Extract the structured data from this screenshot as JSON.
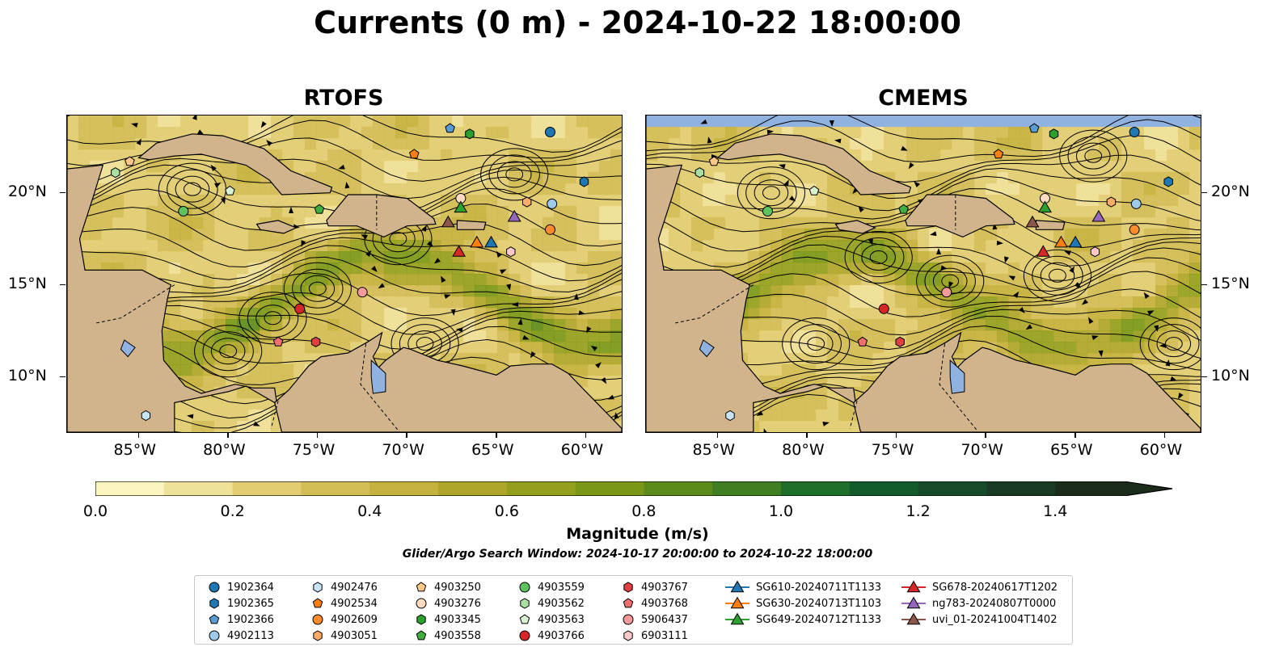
{
  "figure": {
    "title": "Currents (0 m) - 2024-10-22 18:00:00",
    "panels": [
      {
        "id": "rtofs",
        "title": "RTOFS"
      },
      {
        "id": "cmems",
        "title": "CMEMS"
      }
    ],
    "lon_ticks": [
      "85°W",
      "80°W",
      "75°W",
      "70°W",
      "65°W",
      "60°W"
    ],
    "lat_ticks": [
      "20°N",
      "15°N",
      "10°N"
    ],
    "extent": {
      "lon": [
        -89,
        -58
      ],
      "lat": [
        7,
        24.2
      ]
    }
  },
  "colorbar": {
    "label": "Magnitude (m/s)",
    "ticks": [
      "0.0",
      "0.2",
      "0.4",
      "0.6",
      "0.8",
      "1.0",
      "1.2",
      "1.4"
    ],
    "range": [
      0,
      1.5
    ],
    "extend": "max",
    "colors": [
      "#fdf5c0",
      "#f0e199",
      "#e2cd72",
      "#d3bd55",
      "#c5b13d",
      "#aea62a",
      "#94a01d",
      "#7a9718",
      "#5c8b1b",
      "#3f7f22",
      "#1f6e2b",
      "#125c2b",
      "#154b28",
      "#193b23",
      "#1b2c1b"
    ]
  },
  "search_window": "Glider/Argo Search Window: 2024-10-17 20:00:00 to 2024-10-22 18:00:00",
  "legend": [
    {
      "label": "1902364",
      "marker": "circle",
      "color": "#1f77b4"
    },
    {
      "label": "1902365",
      "marker": "hexagon",
      "color": "#1f77b4"
    },
    {
      "label": "1902366",
      "marker": "pentagon",
      "color": "#5a9bd4"
    },
    {
      "label": "4902113",
      "marker": "circle",
      "color": "#9ecae9"
    },
    {
      "label": "4902476",
      "marker": "hexagon",
      "color": "#c6e4f5"
    },
    {
      "label": "4902534",
      "marker": "pentagon",
      "color": "#ff7f0e"
    },
    {
      "label": "4902609",
      "marker": "circle",
      "color": "#ff8c2a"
    },
    {
      "label": "4903051",
      "marker": "hexagon",
      "color": "#ffaa66"
    },
    {
      "label": "4903250",
      "marker": "pentagon",
      "color": "#ffc88a"
    },
    {
      "label": "4903276",
      "marker": "circle",
      "color": "#ffdcc0"
    },
    {
      "label": "4903345",
      "marker": "hexagon",
      "color": "#2ca02c"
    },
    {
      "label": "4903558",
      "marker": "pentagon",
      "color": "#3fb03f"
    },
    {
      "label": "4903559",
      "marker": "circle",
      "color": "#5ec25e"
    },
    {
      "label": "4903562",
      "marker": "hexagon",
      "color": "#a8e0a0"
    },
    {
      "label": "4903563",
      "marker": "pentagon",
      "color": "#d8f2d0"
    },
    {
      "label": "4903766",
      "marker": "circle",
      "color": "#d62728"
    },
    {
      "label": "4903767",
      "marker": "hexagon",
      "color": "#e04040"
    },
    {
      "label": "4903768",
      "marker": "pentagon",
      "color": "#f07070"
    },
    {
      "label": "5906437",
      "marker": "circle",
      "color": "#f59a9a"
    },
    {
      "label": "6903111",
      "marker": "hexagon",
      "color": "#fcc8c8"
    },
    {
      "label": "SG610-20240711T1133",
      "marker": "triangle",
      "color": "#1f77b4"
    },
    {
      "label": "SG630-20240713T1103",
      "marker": "triangle",
      "color": "#ff7f0e"
    },
    {
      "label": "SG649-20240712T1133",
      "marker": "triangle",
      "color": "#2ca02c"
    },
    {
      "label": "SG678-20240617T1202",
      "marker": "triangle",
      "color": "#d62728"
    },
    {
      "label": "ng783-20240807T0000",
      "marker": "triangle",
      "color": "#9467bd"
    },
    {
      "label": "uvi_01-20241004T1402",
      "marker": "triangle",
      "color": "#8c564b"
    }
  ],
  "platforms": [
    {
      "id": "1902364",
      "lon": -62,
      "lat": 23.3
    },
    {
      "id": "1902365",
      "lon": -60.1,
      "lat": 20.6
    },
    {
      "id": "1902366",
      "lon": -67.6,
      "lat": 23.5
    },
    {
      "id": "4902113",
      "lon": -61.9,
      "lat": 19.4
    },
    {
      "id": "4902476",
      "lon": -84.6,
      "lat": 7.9
    },
    {
      "id": "4902534",
      "lon": -69.6,
      "lat": 22.1
    },
    {
      "id": "4902609",
      "lon": -62,
      "lat": 18
    },
    {
      "id": "4903051",
      "lon": -63.3,
      "lat": 19.5
    },
    {
      "id": "4903250",
      "lon": -85.5,
      "lat": 21.7
    },
    {
      "id": "4903276",
      "lon": -67,
      "lat": 19.7
    },
    {
      "id": "4903345",
      "lon": -66.5,
      "lat": 23.2
    },
    {
      "id": "4903558",
      "lon": -74.9,
      "lat": 19.1
    },
    {
      "id": "4903559",
      "lon": -82.5,
      "lat": 19
    },
    {
      "id": "4903562",
      "lon": -86.3,
      "lat": 21.1
    },
    {
      "id": "4903563",
      "lon": -79.9,
      "lat": 20.1
    },
    {
      "id": "4903766",
      "lon": -76,
      "lat": 13.7
    },
    {
      "id": "4903767",
      "lon": -75.1,
      "lat": 11.9
    },
    {
      "id": "4903768",
      "lon": -77.2,
      "lat": 11.9
    },
    {
      "id": "5906437",
      "lon": -72.5,
      "lat": 14.6
    },
    {
      "id": "6903111",
      "lon": -64.2,
      "lat": 16.8
    },
    {
      "id": "SG610-20240711T1133",
      "lon": -65.3,
      "lat": 17.3
    },
    {
      "id": "SG630-20240713T1103",
      "lon": -66.1,
      "lat": 17.3
    },
    {
      "id": "SG649-20240712T1133",
      "lon": -67,
      "lat": 19.2
    },
    {
      "id": "SG678-20240617T1202",
      "lon": -67.1,
      "lat": 16.8
    },
    {
      "id": "ng783-20240807T0000",
      "lon": -64,
      "lat": 18.7
    },
    {
      "id": "uvi_01-20241004T1402",
      "lon": -67.7,
      "lat": 18.4
    }
  ]
}
